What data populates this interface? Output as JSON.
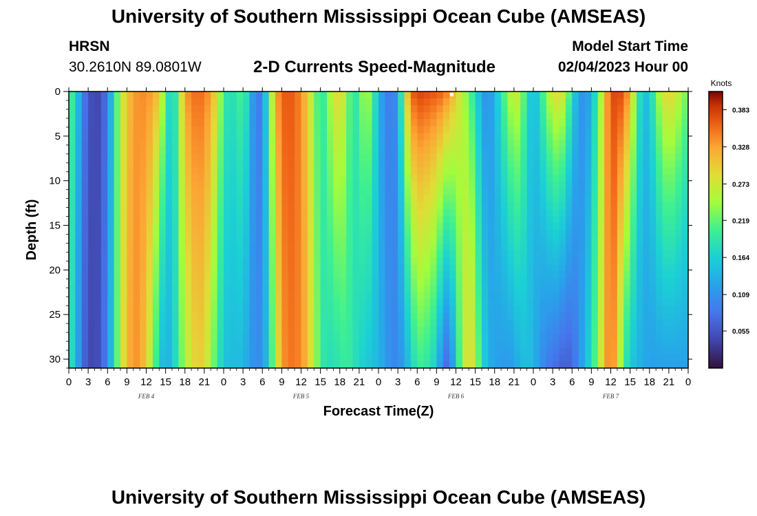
{
  "header": {
    "title": "University of Southern Mississippi Ocean Cube (AMSEAS)",
    "station": "HRSN",
    "coordinates": "30.2610N  89.0801W",
    "chart_title": "2-D Currents Speed-Magnitude",
    "start_label": "Model Start Time",
    "start_value": "02/04/2023 Hour 00"
  },
  "footer": {
    "title": "University of Southern Mississippi Ocean Cube (AMSEAS)"
  },
  "chart_data": {
    "type": "heatmap",
    "title": "2-D Currents Speed-Magnitude",
    "xlabel": "Forecast Time(Z)",
    "ylabel": "Depth (ft)",
    "x_ticks": [
      "0",
      "3",
      "6",
      "9",
      "12",
      "15",
      "18",
      "21",
      "0",
      "3",
      "6",
      "9",
      "12",
      "15",
      "18",
      "21",
      "0",
      "3",
      "6",
      "9",
      "12",
      "15",
      "18",
      "21",
      "0",
      "3",
      "6",
      "9",
      "12",
      "15",
      "18",
      "21",
      "0"
    ],
    "x_range_hours": [
      0,
      96
    ],
    "day_labels": [
      {
        "label": "FEB 4",
        "hour": 12
      },
      {
        "label": "FEB 5",
        "hour": 36
      },
      {
        "label": "FEB 6",
        "hour": 60
      },
      {
        "label": "FEB 7",
        "hour": 84
      }
    ],
    "y_ticks": [
      0,
      5,
      10,
      15,
      20,
      25,
      30
    ],
    "ylim": [
      0,
      31
    ],
    "y_inverted": true,
    "colorbar": {
      "unit": "Knots",
      "ticks": [
        "0.383",
        "0.328",
        "0.273",
        "0.219",
        "0.164",
        "0.109",
        "0.055"
      ],
      "range": [
        0.0,
        0.41
      ]
    },
    "speed_profile_knots": {
      "hours": [
        0,
        1,
        2,
        3,
        4,
        5,
        6,
        7,
        8,
        9,
        10,
        11,
        12,
        13,
        14,
        15,
        16,
        17,
        18,
        19,
        20,
        21,
        22,
        23,
        24,
        25,
        26,
        27,
        28,
        29,
        30,
        31,
        32,
        33,
        34,
        35,
        36,
        37,
        38,
        39,
        40,
        41,
        42,
        43,
        44,
        45,
        46,
        47,
        48,
        49,
        50,
        51,
        52,
        53,
        54,
        55,
        56,
        57,
        58,
        59,
        60,
        61,
        62,
        63,
        64,
        65,
        66,
        67,
        68,
        69,
        70,
        71,
        72,
        73,
        74,
        75,
        76,
        77,
        78,
        79,
        80,
        81,
        82,
        83,
        84,
        85,
        86,
        87,
        88,
        89,
        90,
        91,
        92,
        93,
        94,
        95,
        96
      ],
      "surface": [
        0.22,
        0.18,
        0.1,
        0.06,
        0.04,
        0.05,
        0.09,
        0.18,
        0.26,
        0.3,
        0.33,
        0.34,
        0.34,
        0.33,
        0.3,
        0.22,
        0.14,
        0.24,
        0.33,
        0.35,
        0.36,
        0.35,
        0.33,
        0.28,
        0.2,
        0.18,
        0.19,
        0.22,
        0.15,
        0.08,
        0.1,
        0.21,
        0.32,
        0.36,
        0.37,
        0.36,
        0.34,
        0.3,
        0.24,
        0.18,
        0.22,
        0.28,
        0.3,
        0.25,
        0.18,
        0.21,
        0.26,
        0.22,
        0.14,
        0.1,
        0.08,
        0.12,
        0.26,
        0.36,
        0.38,
        0.38,
        0.37,
        0.37,
        0.36,
        0.34,
        0.3,
        0.26,
        0.22,
        0.18,
        0.12,
        0.1,
        0.14,
        0.19,
        0.24,
        0.28,
        0.26,
        0.18,
        0.14,
        0.18,
        0.24,
        0.28,
        0.3,
        0.26,
        0.18,
        0.12,
        0.1,
        0.14,
        0.2,
        0.3,
        0.37,
        0.38,
        0.37,
        0.32,
        0.22,
        0.14,
        0.16,
        0.22,
        0.28,
        0.3,
        0.28,
        0.25,
        0.22
      ],
      "bottom": [
        0.2,
        0.15,
        0.08,
        0.05,
        0.04,
        0.06,
        0.1,
        0.18,
        0.26,
        0.31,
        0.34,
        0.33,
        0.3,
        0.24,
        0.16,
        0.13,
        0.15,
        0.2,
        0.25,
        0.28,
        0.3,
        0.29,
        0.25,
        0.19,
        0.16,
        0.14,
        0.15,
        0.14,
        0.12,
        0.1,
        0.11,
        0.16,
        0.26,
        0.33,
        0.35,
        0.35,
        0.34,
        0.31,
        0.26,
        0.2,
        0.18,
        0.18,
        0.19,
        0.2,
        0.19,
        0.17,
        0.16,
        0.15,
        0.14,
        0.12,
        0.1,
        0.1,
        0.12,
        0.16,
        0.2,
        0.2,
        0.18,
        0.16,
        0.08,
        0.07,
        0.16,
        0.25,
        0.3,
        0.26,
        0.18,
        0.14,
        0.12,
        0.12,
        0.11,
        0.12,
        0.14,
        0.15,
        0.14,
        0.11,
        0.09,
        0.08,
        0.07,
        0.06,
        0.07,
        0.1,
        0.14,
        0.18,
        0.24,
        0.31,
        0.36,
        0.3,
        0.2,
        0.16,
        0.14,
        0.13,
        0.12,
        0.12,
        0.12,
        0.12,
        0.12,
        0.12,
        0.12
      ]
    }
  }
}
